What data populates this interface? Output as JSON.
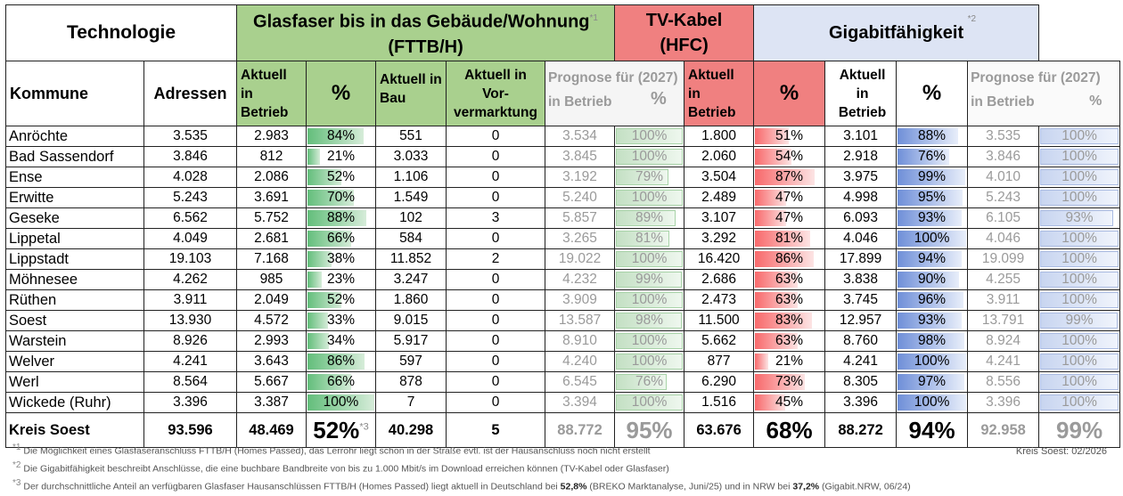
{
  "header": {
    "technologie": "Technologie",
    "glas_title_1": "Glasfaser bis in das Gebäude/Wohnung",
    "glas_sup": "*1",
    "glas_title_2": "(FTTB/H)",
    "tv_title_1": "TV-Kabel",
    "tv_title_2": "(HFC)",
    "giga_title": "Gigabitfähigkeit",
    "giga_sup": "*2"
  },
  "subheader": {
    "kommune": "Kommune",
    "adressen": "Adressen",
    "aktuell_l1": "Aktuell",
    "aktuell_l2": "in",
    "aktuell_l3": "Betrieb",
    "pct": "%",
    "bau_l1": "Aktuell in",
    "bau_l2": "Bau",
    "vor_l1": "Aktuell in",
    "vor_l2": "Vor-",
    "vor_l3": "vermarktung",
    "prog_l1": "Prognose für (2027)",
    "prog_l2": "in Betrieb"
  },
  "rows": [
    {
      "kommune": "Anröchte",
      "adressen": "3.535",
      "g_ak": "2.983",
      "g_pct": "84%",
      "g_pct_v": 84,
      "bau": "551",
      "vor": "0",
      "g_prog": "3.534",
      "g_prog_pct": "100%",
      "g_prog_v": 100,
      "tv": "1.800",
      "tv_pct": "51%",
      "tv_v": 51,
      "gi": "3.101",
      "gi_pct": "88%",
      "gi_v": 88,
      "gi_prog": "3.535",
      "gi_prog_pct": "100%",
      "gi_prog_v": 100
    },
    {
      "kommune": "Bad Sassendorf",
      "adressen": "3.846",
      "g_ak": "812",
      "g_pct": "21%",
      "g_pct_v": 21,
      "bau": "3.033",
      "vor": "0",
      "g_prog": "3.845",
      "g_prog_pct": "100%",
      "g_prog_v": 100,
      "tv": "2.060",
      "tv_pct": "54%",
      "tv_v": 54,
      "gi": "2.918",
      "gi_pct": "76%",
      "gi_v": 76,
      "gi_prog": "3.846",
      "gi_prog_pct": "100%",
      "gi_prog_v": 100
    },
    {
      "kommune": "Ense",
      "adressen": "4.028",
      "g_ak": "2.086",
      "g_pct": "52%",
      "g_pct_v": 52,
      "bau": "1.106",
      "vor": "0",
      "g_prog": "3.192",
      "g_prog_pct": "79%",
      "g_prog_v": 79,
      "tv": "3.504",
      "tv_pct": "87%",
      "tv_v": 87,
      "gi": "3.975",
      "gi_pct": "99%",
      "gi_v": 99,
      "gi_prog": "4.010",
      "gi_prog_pct": "100%",
      "gi_prog_v": 100
    },
    {
      "kommune": "Erwitte",
      "adressen": "5.243",
      "g_ak": "3.691",
      "g_pct": "70%",
      "g_pct_v": 70,
      "bau": "1.549",
      "vor": "0",
      "g_prog": "5.240",
      "g_prog_pct": "100%",
      "g_prog_v": 100,
      "tv": "2.489",
      "tv_pct": "47%",
      "tv_v": 47,
      "gi": "4.998",
      "gi_pct": "95%",
      "gi_v": 95,
      "gi_prog": "5.243",
      "gi_prog_pct": "100%",
      "gi_prog_v": 100
    },
    {
      "kommune": "Geseke",
      "adressen": "6.562",
      "g_ak": "5.752",
      "g_pct": "88%",
      "g_pct_v": 88,
      "bau": "102",
      "vor": "3",
      "g_prog": "5.857",
      "g_prog_pct": "89%",
      "g_prog_v": 89,
      "tv": "3.107",
      "tv_pct": "47%",
      "tv_v": 47,
      "gi": "6.093",
      "gi_pct": "93%",
      "gi_v": 93,
      "gi_prog": "6.105",
      "gi_prog_pct": "93%",
      "gi_prog_v": 93
    },
    {
      "kommune": "Lippetal",
      "adressen": "4.049",
      "g_ak": "2.681",
      "g_pct": "66%",
      "g_pct_v": 66,
      "bau": "584",
      "vor": "0",
      "g_prog": "3.265",
      "g_prog_pct": "81%",
      "g_prog_v": 81,
      "tv": "3.292",
      "tv_pct": "81%",
      "tv_v": 81,
      "gi": "4.046",
      "gi_pct": "100%",
      "gi_v": 100,
      "gi_prog": "4.046",
      "gi_prog_pct": "100%",
      "gi_prog_v": 100
    },
    {
      "kommune": "Lippstadt",
      "adressen": "19.103",
      "g_ak": "7.168",
      "g_pct": "38%",
      "g_pct_v": 38,
      "bau": "11.852",
      "vor": "2",
      "g_prog": "19.022",
      "g_prog_pct": "100%",
      "g_prog_v": 100,
      "tv": "16.420",
      "tv_pct": "86%",
      "tv_v": 86,
      "gi": "17.899",
      "gi_pct": "94%",
      "gi_v": 94,
      "gi_prog": "19.099",
      "gi_prog_pct": "100%",
      "gi_prog_v": 100
    },
    {
      "kommune": "Möhnesee",
      "adressen": "4.262",
      "g_ak": "985",
      "g_pct": "23%",
      "g_pct_v": 23,
      "bau": "3.247",
      "vor": "0",
      "g_prog": "4.232",
      "g_prog_pct": "99%",
      "g_prog_v": 99,
      "tv": "2.686",
      "tv_pct": "63%",
      "tv_v": 63,
      "gi": "3.838",
      "gi_pct": "90%",
      "gi_v": 90,
      "gi_prog": "4.255",
      "gi_prog_pct": "100%",
      "gi_prog_v": 100
    },
    {
      "kommune": "Rüthen",
      "adressen": "3.911",
      "g_ak": "2.049",
      "g_pct": "52%",
      "g_pct_v": 52,
      "bau": "1.860",
      "vor": "0",
      "g_prog": "3.909",
      "g_prog_pct": "100%",
      "g_prog_v": 100,
      "tv": "2.473",
      "tv_pct": "63%",
      "tv_v": 63,
      "gi": "3.745",
      "gi_pct": "96%",
      "gi_v": 96,
      "gi_prog": "3.911",
      "gi_prog_pct": "100%",
      "gi_prog_v": 100
    },
    {
      "kommune": "Soest",
      "adressen": "13.930",
      "g_ak": "4.572",
      "g_pct": "33%",
      "g_pct_v": 33,
      "bau": "9.015",
      "vor": "0",
      "g_prog": "13.587",
      "g_prog_pct": "98%",
      "g_prog_v": 98,
      "tv": "11.500",
      "tv_pct": "83%",
      "tv_v": 83,
      "gi": "12.957",
      "gi_pct": "93%",
      "gi_v": 93,
      "gi_prog": "13.791",
      "gi_prog_pct": "99%",
      "gi_prog_v": 99
    },
    {
      "kommune": "Warstein",
      "adressen": "8.926",
      "g_ak": "2.993",
      "g_pct": "34%",
      "g_pct_v": 34,
      "bau": "5.917",
      "vor": "0",
      "g_prog": "8.910",
      "g_prog_pct": "100%",
      "g_prog_v": 100,
      "tv": "5.662",
      "tv_pct": "63%",
      "tv_v": 63,
      "gi": "8.760",
      "gi_pct": "98%",
      "gi_v": 98,
      "gi_prog": "8.924",
      "gi_prog_pct": "100%",
      "gi_prog_v": 100
    },
    {
      "kommune": "Welver",
      "adressen": "4.241",
      "g_ak": "3.643",
      "g_pct": "86%",
      "g_pct_v": 86,
      "bau": "597",
      "vor": "0",
      "g_prog": "4.240",
      "g_prog_pct": "100%",
      "g_prog_v": 100,
      "tv": "877",
      "tv_pct": "21%",
      "tv_v": 21,
      "gi": "4.241",
      "gi_pct": "100%",
      "gi_v": 100,
      "gi_prog": "4.241",
      "gi_prog_pct": "100%",
      "gi_prog_v": 100
    },
    {
      "kommune": "Werl",
      "adressen": "8.564",
      "g_ak": "5.667",
      "g_pct": "66%",
      "g_pct_v": 66,
      "bau": "878",
      "vor": "0",
      "g_prog": "6.545",
      "g_prog_pct": "76%",
      "g_prog_v": 76,
      "tv": "6.290",
      "tv_pct": "73%",
      "tv_v": 73,
      "gi": "8.305",
      "gi_pct": "97%",
      "gi_v": 97,
      "gi_prog": "8.556",
      "gi_prog_pct": "100%",
      "gi_prog_v": 100
    },
    {
      "kommune": "Wickede (Ruhr)",
      "adressen": "3.396",
      "g_ak": "3.387",
      "g_pct": "100%",
      "g_pct_v": 100,
      "bau": "7",
      "vor": "0",
      "g_prog": "3.394",
      "g_prog_pct": "100%",
      "g_prog_v": 100,
      "tv": "1.516",
      "tv_pct": "45%",
      "tv_v": 45,
      "gi": "3.396",
      "gi_pct": "100%",
      "gi_v": 100,
      "gi_prog": "3.396",
      "gi_prog_pct": "100%",
      "gi_prog_v": 100
    }
  ],
  "total": {
    "kommune": "Kreis Soest",
    "adressen": "93.596",
    "g_ak": "48.469",
    "g_pct": "52%",
    "g_sup": "*3",
    "bau": "40.298",
    "vor": "5",
    "g_prog": "88.772",
    "g_prog_pct": "95%",
    "tv": "63.676",
    "tv_pct": "68%",
    "gi": "88.272",
    "gi_pct": "94%",
    "gi_prog": "92.958",
    "gi_prog_pct": "99%"
  },
  "footnotes": {
    "fn1_mark": "*1",
    "fn1": "Die Möglichkeit eines Glasfaseranschluss FTTB/H (Homes Passed), das Lerrohr liegt schon in der Straße evtl. ist der Hausanschluss noch nicht erstellt",
    "fn2_mark": "*2",
    "fn2": "Die Gigabitfähigkeit beschreibt Anschlüsse, die eine buchbare Bandbreite von bis zu 1.000 Mbit/s im Download erreichen können (TV-Kabel oder Glasfaser)",
    "fn3_mark": "*3",
    "fn3_a": "Der durchschnittliche Anteil an verfügbaren Glasfaser Hausanschlüssen FTTB/H (Homes Passed) liegt aktuell in Deutschland bei ",
    "fn3_b": "52,8%",
    "fn3_c": " (BREKO Marktanalyse, Juni/25) und in NRW bei ",
    "fn3_d": "37,2%",
    "fn3_e": " (Gigabit.NRW, 06/24)",
    "source": "Kreis Soest: 02/2026"
  },
  "colors": {
    "glas": "#a9d08e",
    "tv": "#f08080",
    "giga": "#dde4f4",
    "bar_green": "#63be7b",
    "bar_red": "#f8696b",
    "bar_blue": "#6f8fd8"
  }
}
